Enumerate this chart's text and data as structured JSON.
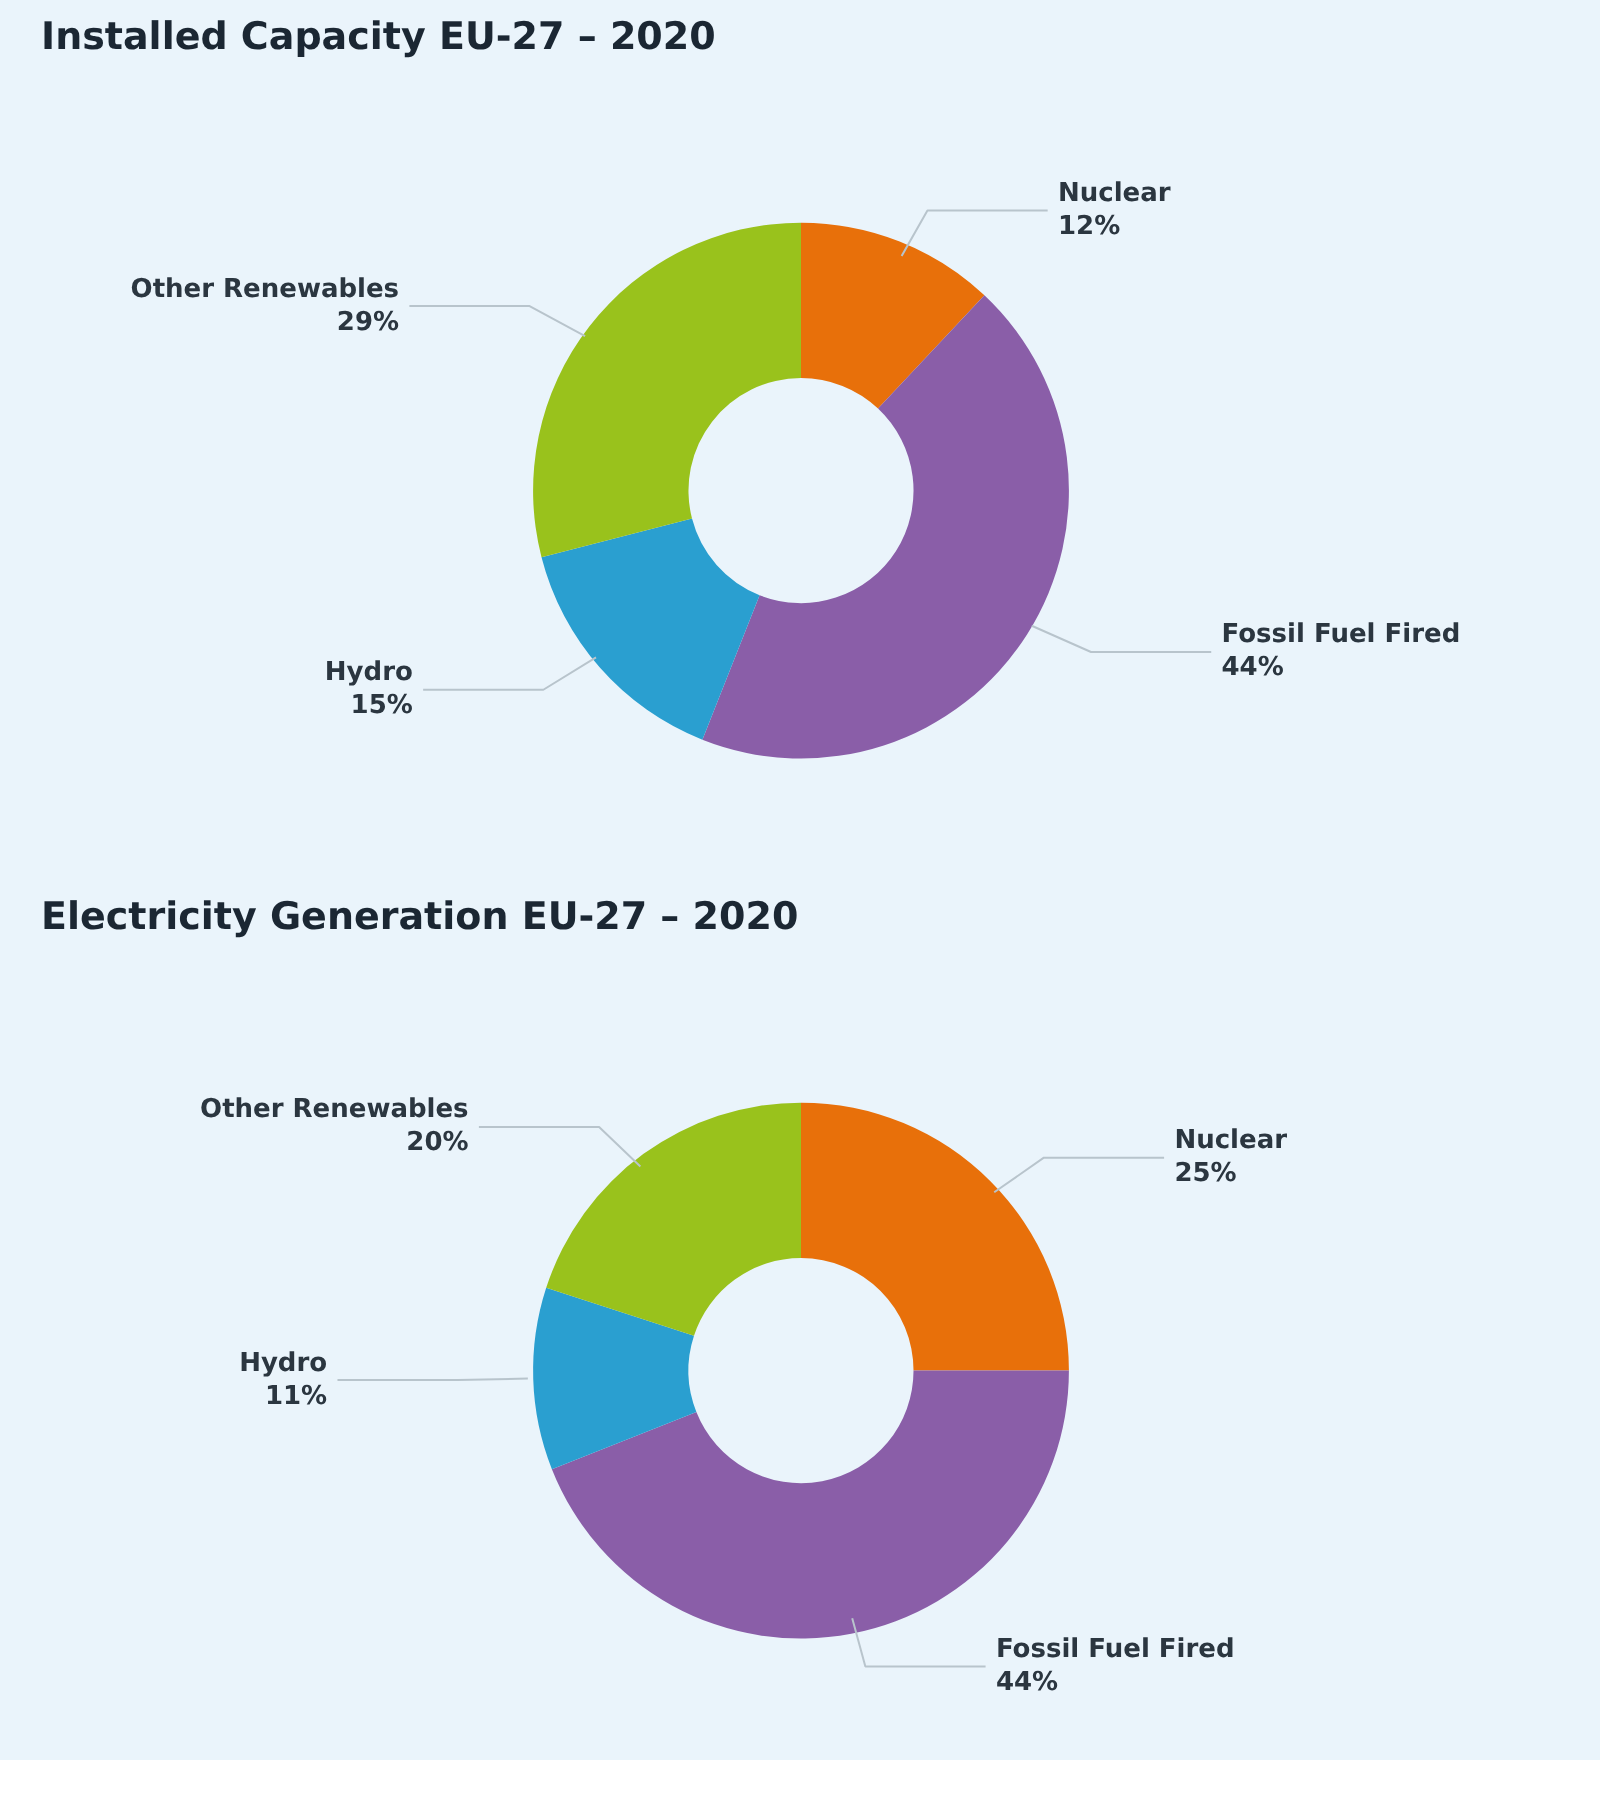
{
  "chart_data": [
    {
      "type": "donut",
      "title": "Installed Capacity EU-27 – 2020",
      "categories": [
        "Nuclear",
        "Fossil Fuel Fired",
        "Hydro",
        "Other Renewables"
      ],
      "values": [
        12,
        44,
        15,
        29
      ],
      "value_labels": [
        "12%",
        "44%",
        "15%",
        "29%"
      ],
      "colors": [
        "#e8700a",
        "#8a5ea8",
        "#2a9fd0",
        "#99c21c"
      ]
    },
    {
      "type": "donut",
      "title": "Electricity Generation EU-27 – 2020",
      "categories": [
        "Nuclear",
        "Fossil Fuel Fired",
        "Hydro",
        "Other Renewables"
      ],
      "values": [
        25,
        44,
        11,
        20
      ],
      "value_labels": [
        "25%",
        "44%",
        "11%",
        "20%"
      ],
      "colors": [
        "#e8700a",
        "#8a5ea8",
        "#2a9fd0",
        "#99c21c"
      ]
    }
  ]
}
